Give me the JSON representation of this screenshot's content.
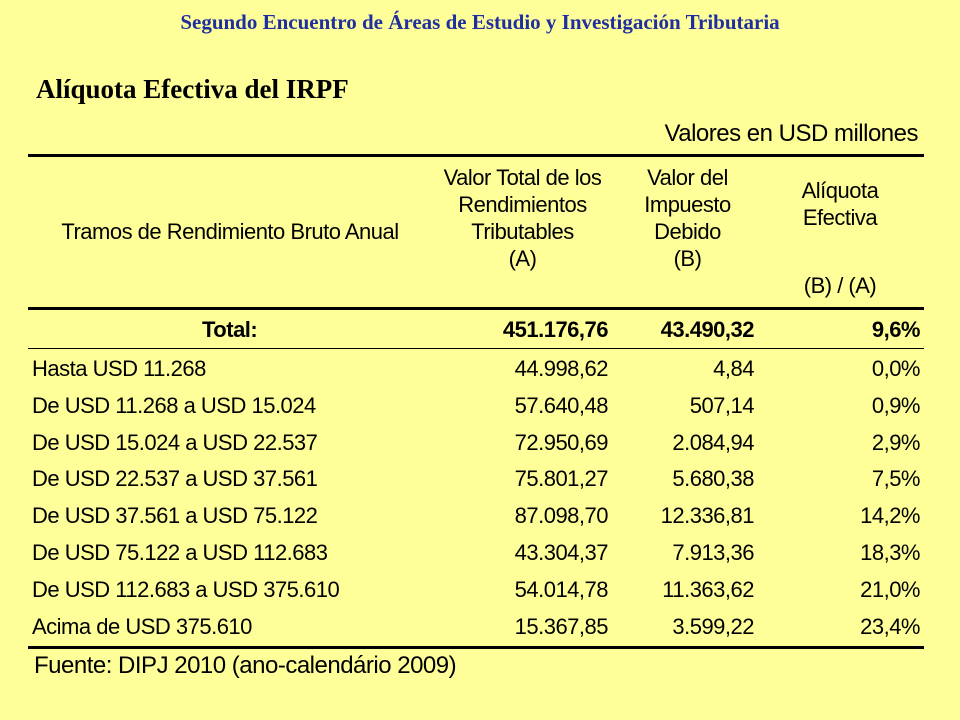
{
  "header": "Segundo Encuentro de Áreas de Estudio y Investigación Tributaria",
  "title": "Alíquota Efectiva del IRPF",
  "units": "Valores en USD millones",
  "columns": {
    "range": "Tramos de Rendimiento Bruto Anual",
    "a": [
      "Valor Total de los",
      "Rendimientos",
      "Tributables",
      "(A)"
    ],
    "b": [
      "Valor del",
      "Impuesto",
      "Debido",
      "(B)"
    ],
    "c": [
      "Alíquota",
      "Efectiva",
      "",
      "(B) / (A)"
    ]
  },
  "total": {
    "label": "Total:",
    "a": "451.176,76",
    "b": "43.490,32",
    "c": "9,6%"
  },
  "rows": [
    {
      "label": "Hasta USD 11.268",
      "a": "44.998,62",
      "b": "4,84",
      "c": "0,0%"
    },
    {
      "label": "De USD 11.268 a USD 15.024",
      "a": "57.640,48",
      "b": "507,14",
      "c": "0,9%"
    },
    {
      "label": "De USD 15.024 a USD 22.537",
      "a": "72.950,69",
      "b": "2.084,94",
      "c": "2,9%"
    },
    {
      "label": "De USD 22.537 a USD 37.561",
      "a": "75.801,27",
      "b": "5.680,38",
      "c": "7,5%"
    },
    {
      "label": "De USD 37.561 a USD 75.122",
      "a": "87.098,70",
      "b": "12.336,81",
      "c": "14,2%"
    },
    {
      "label": "De USD 75.122 a USD 112.683",
      "a": "43.304,37",
      "b": "7.913,36",
      "c": "18,3%"
    },
    {
      "label": "De USD 112.683 a USD 375.610",
      "a": "54.014,78",
      "b": "11.363,62",
      "c": "21,0%"
    },
    {
      "label": "Acima de USD 375.610",
      "a": "15.367,85",
      "b": "3.599,22",
      "c": "23,4%"
    }
  ],
  "source": "Fuente: DIPJ 2010 (ano-calendário 2009)"
}
